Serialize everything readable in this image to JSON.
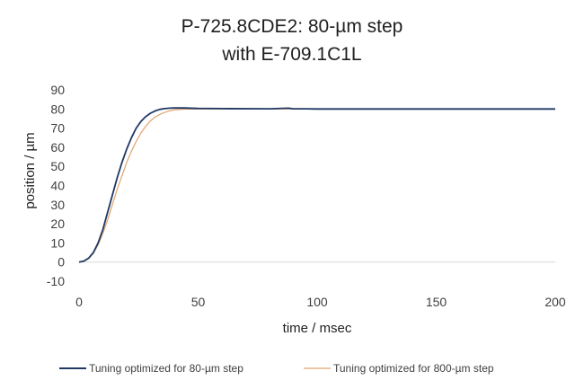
{
  "chart_data": {
    "type": "line",
    "title_line1": "P-725.8CDE2: 80-µm step",
    "title_line2": "with E-709.1C1L",
    "xlabel": "time / msec",
    "ylabel": "position / µm",
    "xlim": [
      0,
      200
    ],
    "ylim": [
      -10,
      90
    ],
    "x_ticks": [
      0,
      50,
      100,
      150,
      200
    ],
    "y_ticks": [
      -10,
      0,
      10,
      20,
      30,
      40,
      50,
      60,
      70,
      80,
      90
    ],
    "grid": false,
    "legend_position": "bottom",
    "series": [
      {
        "name": "Tuning optimized for 80-µm step",
        "color": "#1f3864",
        "x": [
          0,
          2,
          4,
          6,
          8,
          10,
          12,
          14,
          16,
          18,
          20,
          22,
          24,
          26,
          28,
          30,
          32,
          34,
          36,
          38,
          40,
          44,
          50,
          60,
          80,
          88,
          90,
          95,
          100,
          150,
          200
        ],
        "y": [
          0,
          0.5,
          2,
          5,
          10,
          17,
          26,
          35,
          44,
          52,
          59,
          65,
          70,
          73.5,
          76,
          77.8,
          79,
          79.8,
          80.2,
          80.4,
          80.5,
          80.5,
          80.3,
          80.2,
          80.1,
          80.4,
          80.1,
          80.1,
          80,
          80,
          80
        ]
      },
      {
        "name": "Tuning optimized for 800-µm step",
        "color": "#e0a46e",
        "x": [
          0,
          2,
          4,
          6,
          8,
          10,
          12,
          14,
          16,
          18,
          20,
          22,
          24,
          26,
          28,
          30,
          32,
          34,
          36,
          38,
          40,
          44,
          50,
          60,
          100,
          150,
          200
        ],
        "y": [
          0,
          0.4,
          1.8,
          4.5,
          9,
          15,
          22,
          30,
          38,
          45,
          52,
          58,
          63,
          67.5,
          71,
          73.8,
          75.8,
          77.2,
          78.2,
          79,
          79.5,
          79.9,
          80,
          80,
          80,
          80,
          80
        ]
      }
    ]
  }
}
